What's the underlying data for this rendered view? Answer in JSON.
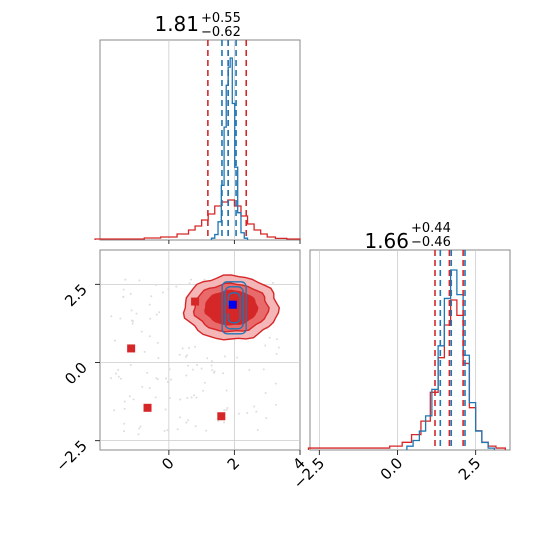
{
  "chart_data": {
    "type": "corner",
    "parameters": [
      {
        "title": {
          "value": "1.81",
          "plus": "+0.55",
          "minus": "−0.62"
        },
        "hist_range": [
          -2.1,
          4.0
        ],
        "blue_quantiles": [
          1.62,
          1.81,
          2.05
        ],
        "red_quantiles": [
          1.19,
          1.81,
          2.36
        ],
        "blue_hist": {
          "centers": [
            1.35,
            1.45,
            1.55,
            1.65,
            1.72,
            1.78,
            1.84,
            1.9,
            1.97,
            2.05,
            2.15,
            2.25,
            2.35
          ],
          "values": [
            0.01,
            0.03,
            0.1,
            0.3,
            0.62,
            0.85,
            0.95,
            1.0,
            0.75,
            0.4,
            0.15,
            0.04,
            0.01
          ]
        },
        "red_hist": {
          "centers": [
            -2.0,
            -1.5,
            -1.0,
            -0.5,
            0.0,
            0.5,
            0.7,
            0.9,
            1.1,
            1.3,
            1.5,
            1.7,
            1.9,
            2.1,
            2.3,
            2.5,
            2.7,
            2.9,
            3.1,
            3.4,
            3.8
          ],
          "values": [
            0.005,
            0.005,
            0.005,
            0.01,
            0.015,
            0.03,
            0.05,
            0.07,
            0.1,
            0.13,
            0.17,
            0.19,
            0.2,
            0.17,
            0.12,
            0.08,
            0.05,
            0.03,
            0.015,
            0.008,
            0.005
          ]
        }
      },
      {
        "title": {
          "value": "1.66",
          "plus": "+0.44",
          "minus": "−0.46"
        },
        "hist_range": [
          -2.8,
          3.6
        ],
        "blue_quantiles": [
          1.37,
          1.72,
          2.16
        ],
        "red_quantiles": [
          1.2,
          1.66,
          2.1
        ],
        "blue_hist": {
          "centers": [
            0.4,
            0.6,
            0.8,
            1.0,
            1.2,
            1.4,
            1.6,
            1.8,
            2.0,
            2.2,
            2.4,
            2.6,
            2.8,
            3.0
          ],
          "values": [
            0.02,
            0.05,
            0.1,
            0.18,
            0.32,
            0.55,
            0.8,
            0.95,
            0.82,
            0.5,
            0.25,
            0.1,
            0.04,
            0.01
          ]
        },
        "red_hist": {
          "centers": [
            -2.5,
            -1.8,
            -1.0,
            -0.5,
            0.0,
            0.3,
            0.6,
            0.9,
            1.2,
            1.4,
            1.6,
            1.8,
            2.0,
            2.2,
            2.4,
            2.6,
            2.8,
            3.0,
            3.3
          ],
          "values": [
            0.01,
            0.01,
            0.01,
            0.01,
            0.02,
            0.04,
            0.08,
            0.15,
            0.3,
            0.48,
            0.65,
            0.78,
            0.7,
            0.45,
            0.22,
            0.1,
            0.04,
            0.02,
            0.01
          ]
        }
      }
    ],
    "scatter_panel": {
      "xlim": [
        -2.1,
        4.0
      ],
      "ylim": [
        -2.8,
        3.6
      ],
      "x_ticks": [
        "0",
        "2",
        "4"
      ],
      "y_ticks": [
        "−2.5",
        "0.0",
        "2.5"
      ],
      "red_markers": [
        [
          -1.15,
          0.45
        ],
        [
          -0.65,
          -1.45
        ],
        [
          0.8,
          1.95
        ],
        [
          1.6,
          -1.72
        ],
        [
          1.85,
          1.7
        ]
      ],
      "blue_marker": [
        1.95,
        1.85
      ],
      "contour_center": [
        1.9,
        1.75
      ]
    },
    "x_ticks_bottom_right": [
      "−2.5",
      "0.0",
      "2.5"
    ],
    "colors": {
      "blue": "#1f77b4",
      "red": "#d62728",
      "red_fill_light": "#f4b6b6",
      "red_fill_mid": "#e86a6a"
    }
  }
}
